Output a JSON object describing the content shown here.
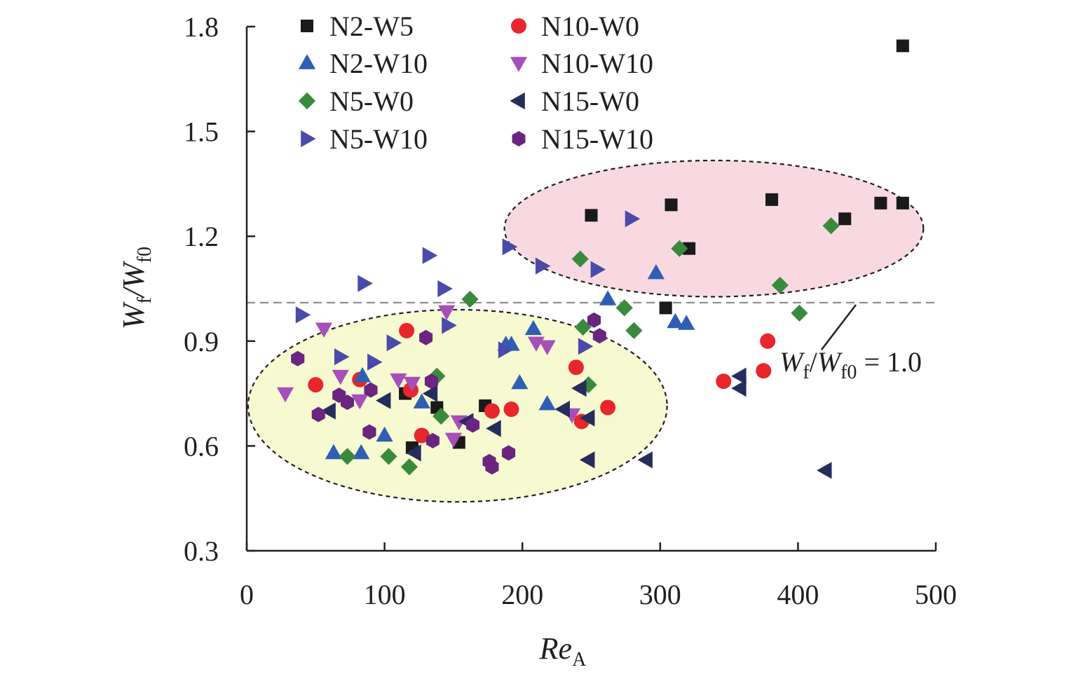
{
  "chart_data": {
    "type": "scatter",
    "title": "",
    "xlabel": {
      "main": "Re",
      "sub": "A"
    },
    "ylabel": {
      "num_main": "W",
      "num_sub": "f",
      "den_main": "W",
      "den_sub": "f0"
    },
    "xlim": [
      0,
      500
    ],
    "ylim": [
      0.3,
      1.8
    ],
    "xticks": [
      "0",
      "100",
      "200",
      "300",
      "400",
      "500"
    ],
    "yticks": [
      "0.3",
      "0.6",
      "0.9",
      "1.2",
      "1.5",
      "1.8"
    ],
    "grid": false,
    "legend_position": "top-left",
    "reference_line": {
      "y": 1.01,
      "label": {
        "main1": "W",
        "sub1": "f",
        "sep": "/",
        "main2": "W",
        "sub2": "f0",
        "rest": " = 1.0"
      },
      "color": "#8c8c8c"
    },
    "regions": [
      {
        "name": "low-region",
        "cx": 153,
        "cy": 0.715,
        "rx": 152,
        "ry": 0.275,
        "fill": "#f7f9d0"
      },
      {
        "name": "high-region",
        "cx": 339,
        "cy": 1.222,
        "rx": 152,
        "ry": 0.195,
        "fill": "#f9d9e1"
      }
    ],
    "series": [
      {
        "name": "N2-W5",
        "marker": "square",
        "color": "#1a1a1a",
        "points": [
          [
            115,
            0.75
          ],
          [
            120,
            0.595
          ],
          [
            138,
            0.71
          ],
          [
            154,
            0.61
          ],
          [
            173,
            0.715
          ],
          [
            250,
            1.26
          ],
          [
            304,
            0.995
          ],
          [
            308,
            1.29
          ],
          [
            321,
            1.165
          ],
          [
            381,
            1.305
          ],
          [
            434,
            1.25
          ],
          [
            460,
            1.295
          ],
          [
            476,
            1.295
          ],
          [
            476,
            1.745
          ]
        ]
      },
      {
        "name": "N10-W0",
        "marker": "circle",
        "color": "#e8262c",
        "points": [
          [
            50,
            0.775
          ],
          [
            82,
            0.79
          ],
          [
            116,
            0.93
          ],
          [
            119,
            0.76
          ],
          [
            127,
            0.63
          ],
          [
            178,
            0.7
          ],
          [
            192,
            0.705
          ],
          [
            239,
            0.825
          ],
          [
            243,
            0.67
          ],
          [
            262,
            0.71
          ],
          [
            346,
            0.785
          ],
          [
            375,
            0.815
          ],
          [
            378,
            0.9
          ]
        ]
      },
      {
        "name": "N2-W10",
        "marker": "triangle-up",
        "color": "#2e5fb5",
        "points": [
          [
            63,
            0.58
          ],
          [
            83,
            0.58
          ],
          [
            84,
            0.8
          ],
          [
            100,
            0.63
          ],
          [
            127,
            0.725
          ],
          [
            188,
            0.89
          ],
          [
            192,
            0.89
          ],
          [
            198,
            0.78
          ],
          [
            208,
            0.935
          ],
          [
            218,
            0.72
          ],
          [
            262,
            1.02
          ],
          [
            297,
            1.095
          ],
          [
            311,
            0.955
          ],
          [
            319,
            0.95
          ]
        ]
      },
      {
        "name": "N10-W10",
        "marker": "triangle-down",
        "color": "#a64fb9",
        "points": [
          [
            28,
            0.75
          ],
          [
            56,
            0.935
          ],
          [
            68,
            0.8
          ],
          [
            82,
            0.73
          ],
          [
            110,
            0.79
          ],
          [
            120,
            0.78
          ],
          [
            145,
            0.985
          ],
          [
            150,
            0.62
          ],
          [
            154,
            0.67
          ],
          [
            210,
            0.895
          ],
          [
            218,
            0.885
          ],
          [
            236,
            0.69
          ]
        ]
      },
      {
        "name": "N5-W0",
        "marker": "diamond",
        "color": "#3a8a3e",
        "points": [
          [
            73,
            0.57
          ],
          [
            103,
            0.57
          ],
          [
            118,
            0.54
          ],
          [
            138,
            0.8
          ],
          [
            141,
            0.685
          ],
          [
            162,
            1.02
          ],
          [
            242,
            1.135
          ],
          [
            244,
            0.94
          ],
          [
            248,
            0.775
          ],
          [
            274,
            0.995
          ],
          [
            281,
            0.93
          ],
          [
            314,
            1.165
          ],
          [
            387,
            1.06
          ],
          [
            401,
            0.98
          ],
          [
            424,
            1.23
          ]
        ]
      },
      {
        "name": "N15-W0",
        "marker": "triangle-left",
        "color": "#262c5b",
        "points": [
          [
            60,
            0.7
          ],
          [
            100,
            0.73
          ],
          [
            122,
            0.58
          ],
          [
            134,
            0.75
          ],
          [
            160,
            0.67
          ],
          [
            180,
            0.65
          ],
          [
            230,
            0.705
          ],
          [
            242,
            0.765
          ],
          [
            248,
            0.56
          ],
          [
            248,
            0.68
          ],
          [
            290,
            0.56
          ],
          [
            358,
            0.8
          ],
          [
            358,
            0.765
          ],
          [
            420,
            0.53
          ]
        ]
      },
      {
        "name": "N5-W10",
        "marker": "triangle-right",
        "color": "#4a4aab",
        "points": [
          [
            40,
            0.975
          ],
          [
            68,
            0.855
          ],
          [
            85,
            1.065
          ],
          [
            92,
            0.84
          ],
          [
            106,
            0.895
          ],
          [
            132,
            1.145
          ],
          [
            143,
            1.05
          ],
          [
            146,
            0.945
          ],
          [
            190,
            1.17
          ],
          [
            214,
            1.115
          ],
          [
            245,
            0.885
          ],
          [
            254,
            1.105
          ],
          [
            279,
            1.25
          ],
          [
            187,
            0.875
          ]
        ]
      },
      {
        "name": "N15-W10",
        "marker": "hexagon",
        "color": "#6b2480",
        "points": [
          [
            37,
            0.85
          ],
          [
            52,
            0.69
          ],
          [
            67,
            0.745
          ],
          [
            73,
            0.725
          ],
          [
            90,
            0.76
          ],
          [
            89,
            0.64
          ],
          [
            130,
            0.91
          ],
          [
            134,
            0.785
          ],
          [
            135,
            0.615
          ],
          [
            164,
            0.66
          ],
          [
            176,
            0.555
          ],
          [
            178,
            0.54
          ],
          [
            190,
            0.58
          ],
          [
            252,
            0.96
          ],
          [
            256,
            0.915
          ]
        ]
      }
    ]
  }
}
